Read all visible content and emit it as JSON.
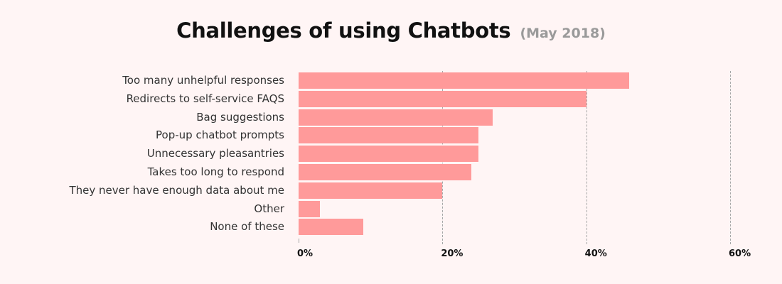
{
  "header": {
    "title": "Challenges of using Chatbots",
    "subtitle": "(May 2018)"
  },
  "colors": {
    "bar": "#FF9A9A",
    "background": "#FFF5F5",
    "grid": "#A6A6A6"
  },
  "chart_data": {
    "type": "bar",
    "orientation": "horizontal",
    "title": "Challenges of using Chatbots",
    "subtitle": "(May 2018)",
    "categories": [
      "Too many unhelpful responses",
      "Redirects to self-service FAQS",
      "Bag suggestions",
      "Pop-up chatbot prompts",
      "Unnecessary pleasantries",
      "Takes too long to respond",
      "They never have enough data about me",
      "Other",
      "None of these"
    ],
    "values": [
      46,
      40,
      27,
      25,
      25,
      24,
      20,
      3,
      9
    ],
    "xlabel": "",
    "ylabel": "",
    "xlim": [
      0,
      60
    ],
    "x_ticks": [
      "0%",
      "20%",
      "40%",
      "60%"
    ],
    "x_tick_values": [
      0,
      20,
      40,
      60
    ],
    "grid": "vertical dashed",
    "legend": "none",
    "unit": "%"
  }
}
